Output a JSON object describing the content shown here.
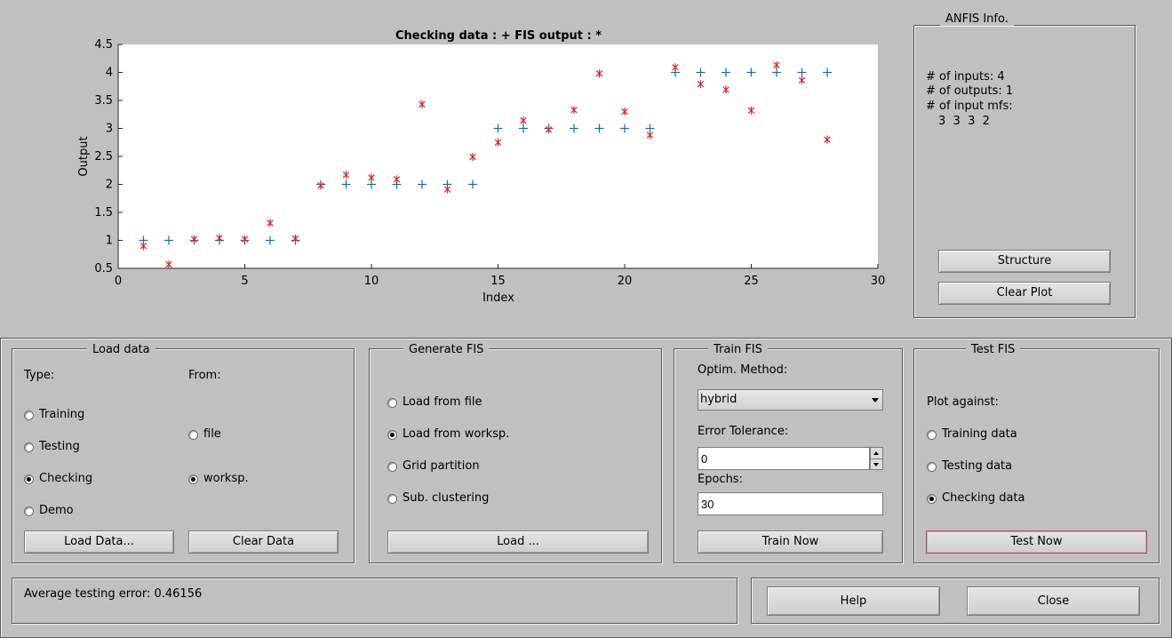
{
  "plot": {
    "title": "Checking data : +   FIS output : *",
    "xlabel": "Index",
    "ylabel": "Output",
    "x_ticks": [
      "0",
      "5",
      "10",
      "15",
      "20",
      "25",
      "30"
    ],
    "y_ticks": [
      "0.5",
      "1",
      "1.5",
      "2",
      "2.5",
      "3",
      "3.5",
      "4",
      "4.5"
    ]
  },
  "chart_data": {
    "type": "scatter",
    "title": "Checking data : +   FIS output : *",
    "xlabel": "Index",
    "ylabel": "Output",
    "xlim": [
      0,
      30
    ],
    "ylim": [
      0.5,
      4.5
    ],
    "grid": false,
    "series": [
      {
        "name": "Checking data",
        "marker": "+",
        "color": "#0072bd",
        "x": [
          1,
          2,
          3,
          4,
          5,
          6,
          7,
          8,
          9,
          10,
          11,
          12,
          13,
          14,
          15,
          16,
          17,
          18,
          19,
          20,
          21,
          22,
          23,
          24,
          25,
          26,
          27,
          28
        ],
        "y": [
          1,
          1,
          1,
          1,
          1,
          1,
          1,
          2,
          2,
          2,
          2,
          2,
          2,
          2,
          3,
          3,
          3,
          3,
          3,
          3,
          3,
          4,
          4,
          4,
          4,
          4,
          4,
          4
        ]
      },
      {
        "name": "FIS output",
        "marker": "*",
        "color": "#d62728",
        "x": [
          1,
          2,
          3,
          4,
          5,
          6,
          7,
          8,
          9,
          10,
          11,
          12,
          13,
          14,
          15,
          16,
          17,
          18,
          19,
          20,
          21,
          22,
          23,
          24,
          25,
          26,
          27,
          28
        ],
        "y": [
          0.9,
          0.57,
          1.02,
          1.04,
          1.02,
          1.31,
          1.03,
          1.98,
          2.17,
          2.12,
          2.09,
          3.43,
          1.91,
          2.49,
          2.75,
          3.14,
          2.98,
          3.33,
          3.98,
          3.3,
          2.88,
          4.09,
          3.79,
          3.69,
          3.32,
          4.13,
          3.86,
          2.8
        ]
      }
    ]
  },
  "anfis_info": {
    "title": "ANFIS Info.",
    "inputs": "# of inputs: 4",
    "outputs": "# of outputs: 1",
    "mfs_label": "# of input mfs:",
    "mfs_values": "3  3  3  2",
    "structure_btn": "Structure",
    "clear_plot_btn": "Clear Plot"
  },
  "load_data": {
    "title": "Load data",
    "type_label": "Type:",
    "from_label": "From:",
    "types": [
      {
        "label": "Training",
        "selected": false
      },
      {
        "label": "Testing",
        "selected": false
      },
      {
        "label": "Checking",
        "selected": true
      },
      {
        "label": "Demo",
        "selected": false
      }
    ],
    "sources": [
      {
        "label": "file",
        "selected": false
      },
      {
        "label": "worksp.",
        "selected": true
      }
    ],
    "load_btn": "Load Data...",
    "clear_btn": "Clear Data"
  },
  "generate_fis": {
    "title": "Generate FIS",
    "options": [
      {
        "label": "Load from file",
        "selected": false
      },
      {
        "label": "Load from worksp.",
        "selected": true
      },
      {
        "label": "Grid partition",
        "selected": false
      },
      {
        "label": "Sub. clustering",
        "selected": false
      }
    ],
    "load_btn": "Load ..."
  },
  "train_fis": {
    "title": "Train FIS",
    "method_label": "Optim. Method:",
    "method_value": "hybrid",
    "tolerance_label": "Error Tolerance:",
    "tolerance_value": "0",
    "epochs_label": "Epochs:",
    "epochs_value": "30",
    "train_btn": "Train Now"
  },
  "test_fis": {
    "title": "Test FIS",
    "plot_against_label": "Plot against:",
    "options": [
      {
        "label": "Training data",
        "selected": false
      },
      {
        "label": "Testing data",
        "selected": false
      },
      {
        "label": "Checking data",
        "selected": true
      }
    ],
    "test_btn": "Test Now"
  },
  "status": {
    "text": "Average testing error: 0.46156"
  },
  "bottom_buttons": {
    "help": "Help",
    "close": "Close"
  }
}
